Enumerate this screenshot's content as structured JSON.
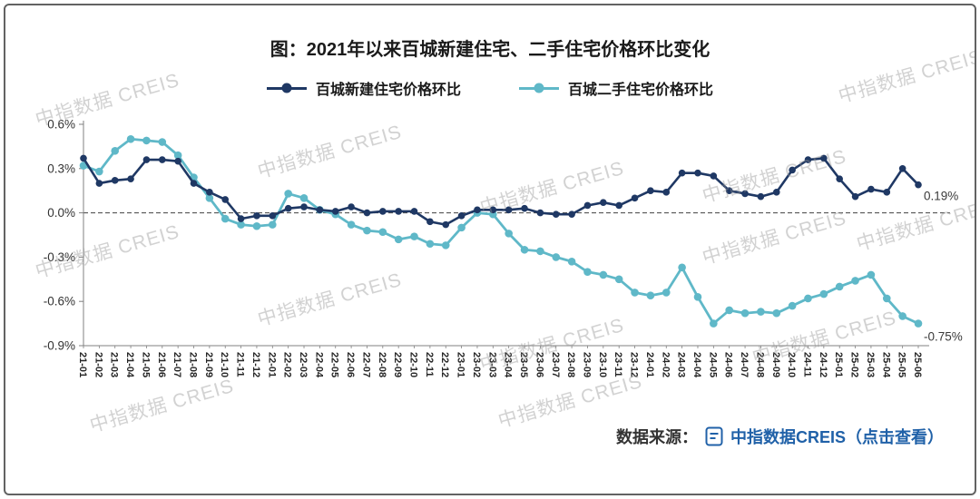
{
  "title": "图：2021年以来百城新建住宅、二手住宅价格环比变化",
  "watermark": {
    "text": "中指数据 CREIS"
  },
  "source": {
    "label": "数据来源：",
    "link_text": "中指数据CREIS（点击查看）",
    "link_color": "#2061A8"
  },
  "chart_data": {
    "type": "line",
    "title": "图：2021年以来百城新建住宅、二手住宅价格环比变化",
    "x": [
      "21-01",
      "21-02",
      "21-03",
      "21-04",
      "21-05",
      "21-06",
      "21-07",
      "21-08",
      "21-09",
      "21-10",
      "21-11",
      "21-12",
      "22-01",
      "22-02",
      "22-03",
      "22-04",
      "22-05",
      "22-06",
      "22-07",
      "22-08",
      "22-09",
      "22-10",
      "22-11",
      "22-12",
      "23-01",
      "23-02",
      "23-03",
      "23-04",
      "23-05",
      "23-06",
      "23-07",
      "23-08",
      "23-09",
      "23-10",
      "23-11",
      "23-12",
      "24-01",
      "24-02",
      "24-03",
      "24-04",
      "24-05",
      "24-06",
      "24-07",
      "24-08",
      "24-09",
      "24-10",
      "24-11",
      "24-12",
      "25-01",
      "25-02",
      "25-03",
      "25-04",
      "25-05",
      "25-06"
    ],
    "series": [
      {
        "name": "百城新建住宅价格环比",
        "color": "#1F3864",
        "values": [
          0.37,
          0.2,
          0.22,
          0.23,
          0.36,
          0.36,
          0.35,
          0.2,
          0.14,
          0.09,
          -0.04,
          -0.02,
          -0.02,
          0.03,
          0.04,
          0.02,
          0.01,
          0.04,
          0.0,
          0.01,
          0.01,
          0.01,
          -0.06,
          -0.08,
          -0.02,
          0.02,
          0.02,
          0.02,
          0.03,
          0.0,
          -0.01,
          -0.01,
          0.05,
          0.07,
          0.05,
          0.1,
          0.15,
          0.14,
          0.27,
          0.27,
          0.25,
          0.15,
          0.13,
          0.11,
          0.14,
          0.29,
          0.36,
          0.37,
          0.23,
          0.11,
          0.16,
          0.14,
          0.3,
          0.19
        ]
      },
      {
        "name": "百城二手住宅价格环比",
        "color": "#5FB8C8",
        "values": [
          0.32,
          0.28,
          0.42,
          0.5,
          0.49,
          0.48,
          0.39,
          0.24,
          0.1,
          -0.04,
          -0.08,
          -0.09,
          -0.08,
          0.13,
          0.1,
          0.02,
          -0.01,
          -0.08,
          -0.12,
          -0.13,
          -0.18,
          -0.16,
          -0.21,
          -0.22,
          -0.1,
          0.0,
          -0.01,
          -0.14,
          -0.25,
          -0.26,
          -0.3,
          -0.33,
          -0.4,
          -0.42,
          -0.45,
          -0.54,
          -0.56,
          -0.54,
          -0.37,
          -0.57,
          -0.75,
          -0.66,
          -0.68,
          -0.67,
          -0.68,
          -0.63,
          -0.58,
          -0.55,
          -0.5,
          -0.46,
          -0.42,
          -0.58,
          -0.7,
          -0.75
        ]
      }
    ],
    "ylim": [
      -0.9,
      0.6
    ],
    "yticks": [
      0.6,
      0.3,
      0.0,
      -0.3,
      -0.6,
      -0.9
    ],
    "ytick_format": "percent",
    "zero_line": "dashed",
    "grid": false,
    "legend_position": "top",
    "end_labels": [
      {
        "series": 0,
        "text": "0.19%"
      },
      {
        "series": 1,
        "text": "-0.75%"
      }
    ]
  }
}
